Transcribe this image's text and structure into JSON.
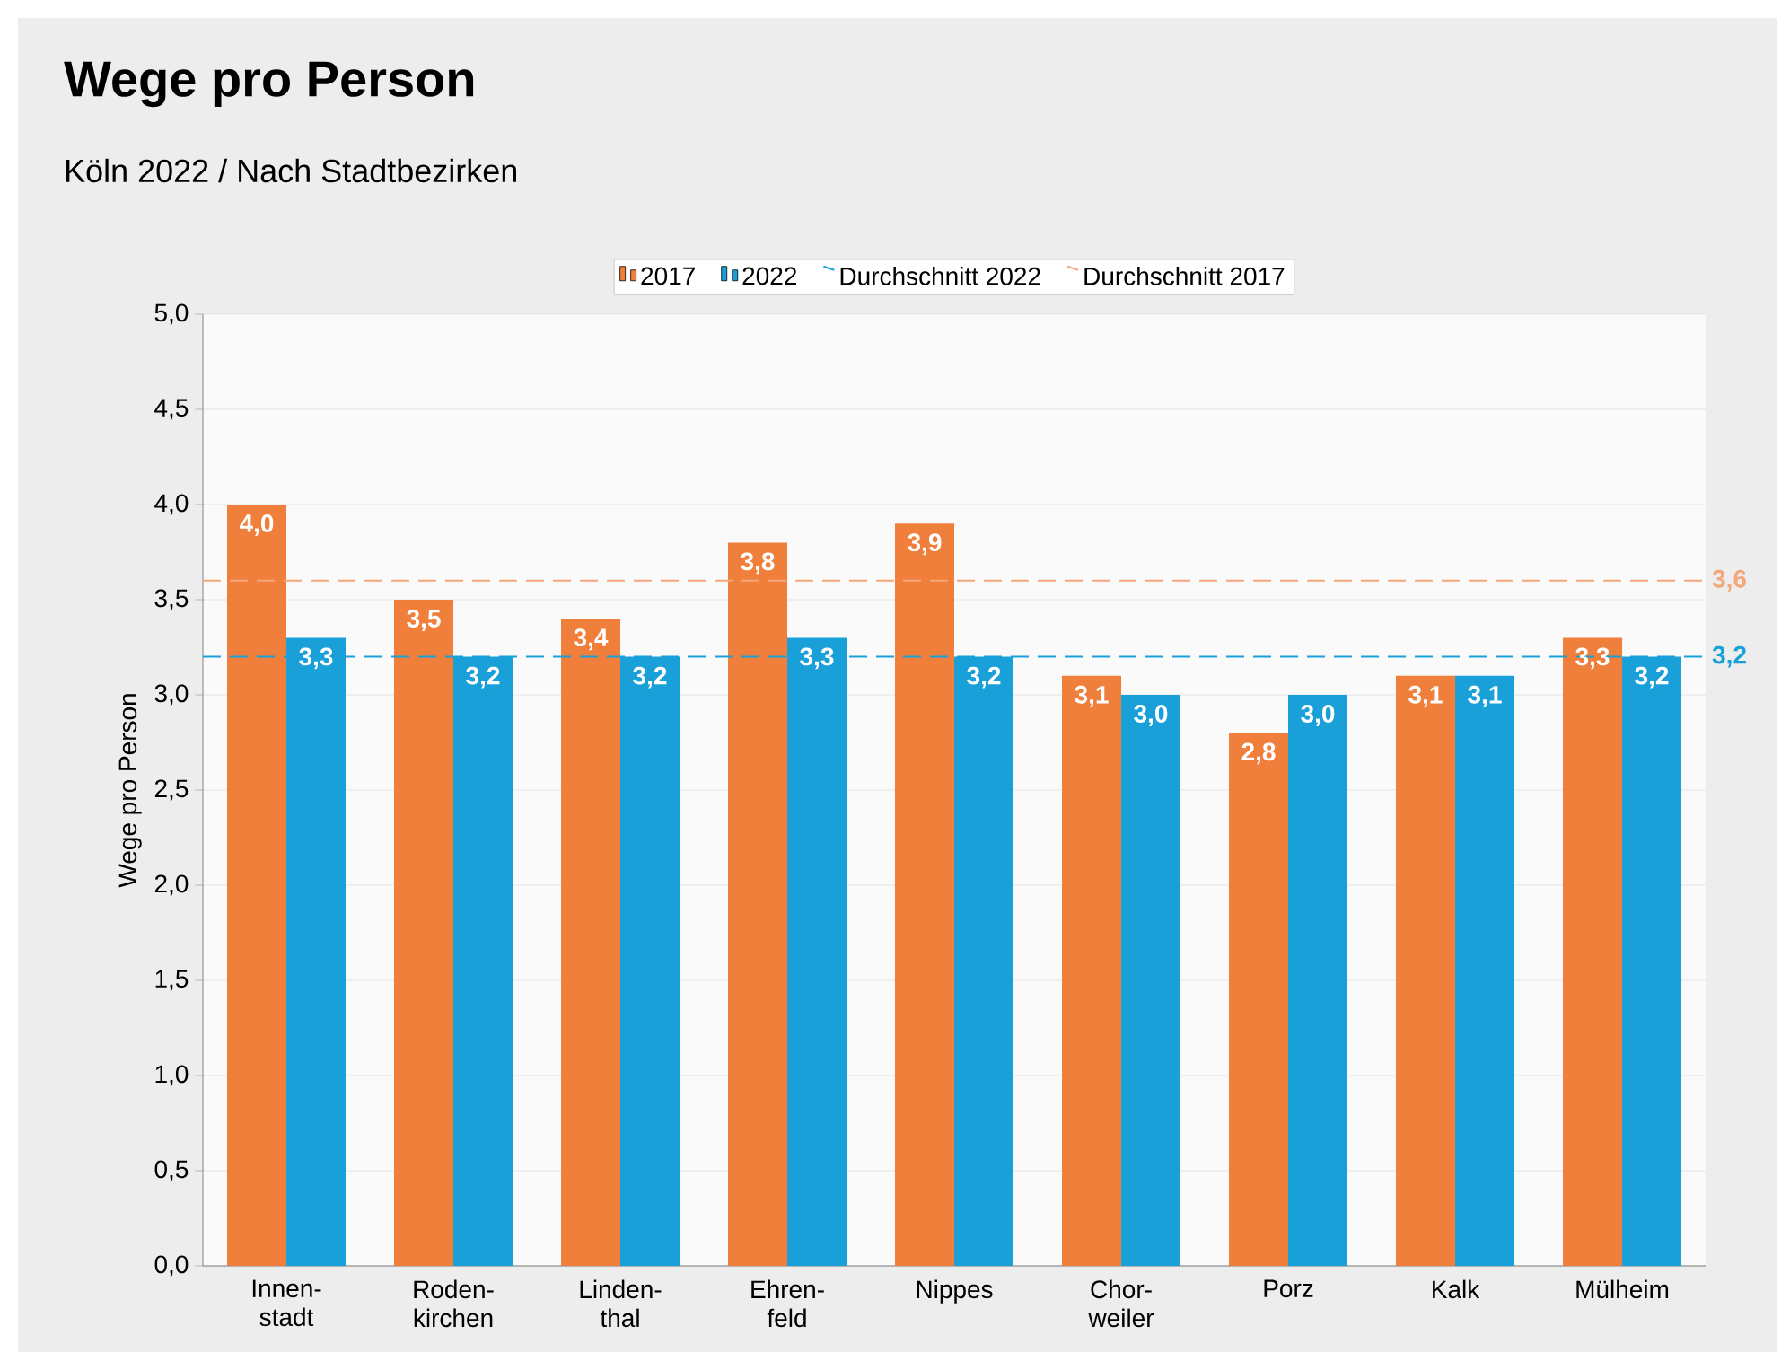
{
  "chart_data": {
    "type": "bar",
    "title": "Wege pro Person",
    "subtitle": "Köln 2022 / Nach Stadtbezirken",
    "ylabel": "Wege pro Person",
    "categories": [
      "Innen-stadt",
      "Roden-kirchen",
      "Linden-thal",
      "Ehren-feld",
      "Nippes",
      "Chor-weiler",
      "Porz",
      "Kalk",
      "Mülheim"
    ],
    "series": [
      {
        "name": "2017",
        "color": "#f07f3c",
        "values": [
          4.0,
          3.5,
          3.4,
          3.8,
          3.9,
          3.1,
          2.8,
          3.1,
          3.3
        ],
        "value_labels": [
          "4,0",
          "3,5",
          "3,4",
          "3,8",
          "3,9",
          "3,1",
          "2,8",
          "3,1",
          "3,3"
        ]
      },
      {
        "name": "2022",
        "color": "#1aa0d8",
        "values": [
          3.3,
          3.2,
          3.2,
          3.3,
          3.2,
          3.0,
          3.0,
          3.1,
          3.2
        ],
        "value_labels": [
          "3,3",
          "3,2",
          "3,2",
          "3,3",
          "3,2",
          "3,0",
          "3,0",
          "3,1",
          "3,2"
        ]
      }
    ],
    "ylim": [
      0,
      5
    ],
    "yticks": [
      {
        "value": 0,
        "label": "0,0"
      },
      {
        "value": 0.5,
        "label": "0,5"
      },
      {
        "value": 1,
        "label": "1,0"
      },
      {
        "value": 1.5,
        "label": "1,5"
      },
      {
        "value": 2,
        "label": "2,0"
      },
      {
        "value": 2.5,
        "label": "2,5"
      },
      {
        "value": 3,
        "label": "3,0"
      },
      {
        "value": 3.5,
        "label": "3,5"
      },
      {
        "value": 4,
        "label": "4,0"
      },
      {
        "value": 4.5,
        "label": "4,5"
      },
      {
        "value": 5,
        "label": "5,0"
      }
    ],
    "ref_lines": [
      {
        "axis": "y",
        "value": 3.2,
        "label": "Durchschnitt 2022",
        "color": "#1aa0d8",
        "line_style": "dashed"
      },
      {
        "axis": "y",
        "value": 3.6,
        "label": "Durchschnitt 2017",
        "color": "#f4a77a",
        "line_style": "dashed"
      }
    ],
    "annotations": [
      "3,2",
      "3,6"
    ],
    "grid": "y",
    "legend": "top"
  }
}
